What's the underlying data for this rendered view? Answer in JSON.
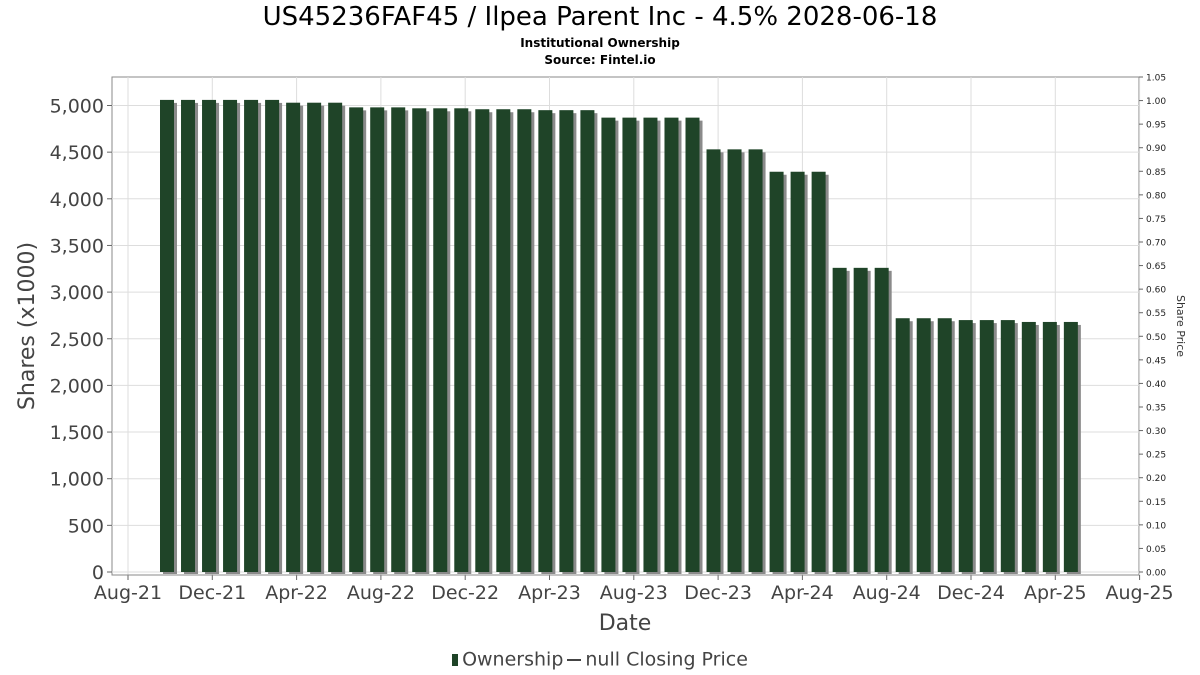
{
  "header": {
    "title": "US45236FAF45 / Ilpea Parent Inc - 4.5% 2028-06-18",
    "subtitle": "Institutional Ownership",
    "source": "Source: Fintel.io"
  },
  "legend": {
    "ownership_label": "Ownership",
    "price_label": "null Closing Price"
  },
  "colors": {
    "bar": "#1f4428",
    "bar_shadow": "#8a8a8a",
    "grid": "#dddddd",
    "plot_border": "#888888"
  },
  "chart_data": {
    "type": "bar",
    "title": "US45236FAF45 / Ilpea Parent Inc - 4.5% 2028-06-18",
    "subtitle": "Institutional Ownership",
    "xlabel": "Date",
    "ylabel": "Shares (x1000)",
    "y2label": "Share Price",
    "ylim": [
      0,
      5300
    ],
    "y2lim": [
      0,
      1.05
    ],
    "grid": true,
    "legend_position": "bottom",
    "x_tick_labels": [
      "Aug-21",
      "Dec-21",
      "Apr-22",
      "Aug-22",
      "Dec-22",
      "Apr-23",
      "Aug-23",
      "Dec-23",
      "Apr-24",
      "Aug-24",
      "Dec-24",
      "Apr-25",
      "Aug-25"
    ],
    "y_tick_labels": [
      "0",
      "500",
      "1,000",
      "1,500",
      "2,000",
      "2,500",
      "3,000",
      "3,500",
      "4,000",
      "4,500",
      "5,000"
    ],
    "y2_tick_labels": [
      "0.00",
      "0.05",
      "0.10",
      "0.15",
      "0.20",
      "0.25",
      "0.30",
      "0.35",
      "0.40",
      "0.45",
      "0.50",
      "0.55",
      "0.60",
      "0.65",
      "0.70",
      "0.75",
      "0.80",
      "0.85",
      "0.90",
      "0.95",
      "1.00",
      "1.05"
    ],
    "series": [
      {
        "name": "Ownership",
        "values": [
          5060,
          5060,
          5060,
          5060,
          5060,
          5060,
          5030,
          5030,
          5030,
          4980,
          4980,
          4980,
          4970,
          4970,
          4970,
          4960,
          4960,
          4960,
          4950,
          4950,
          4950,
          4870,
          4870,
          4870,
          4870,
          4870,
          4530,
          4530,
          4530,
          4290,
          4290,
          4290,
          3260,
          3260,
          3260,
          2720,
          2720,
          2720,
          2700,
          2700,
          2700,
          2680,
          2680,
          2680
        ]
      }
    ]
  }
}
